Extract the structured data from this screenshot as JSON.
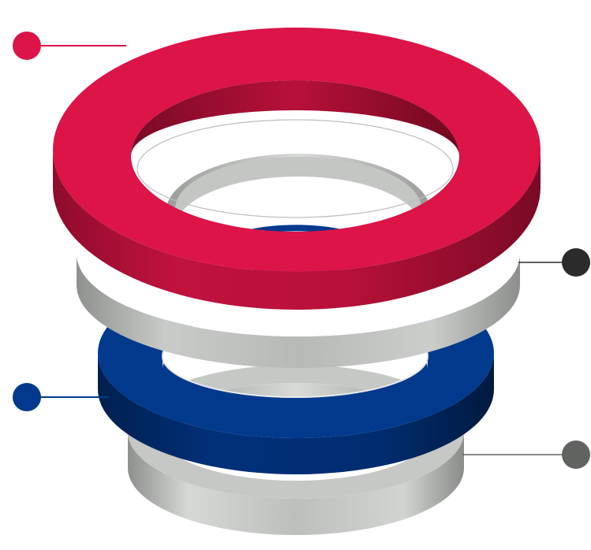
{
  "diagram": {
    "layers": [
      {
        "id": "red",
        "color": "#dc1448"
      },
      {
        "id": "white",
        "color": "#ffffff"
      },
      {
        "id": "blue",
        "color": "#013a8d"
      },
      {
        "id": "gray",
        "color": "#b4b6b4"
      }
    ],
    "callouts": [
      {
        "layer": "red",
        "side": "left",
        "color": "#dc1448"
      },
      {
        "layer": "white",
        "side": "right",
        "color": "#2b2b2b"
      },
      {
        "layer": "blue",
        "side": "left",
        "color": "#013a8d"
      },
      {
        "layer": "gray",
        "side": "right",
        "color": "#616361"
      }
    ]
  }
}
